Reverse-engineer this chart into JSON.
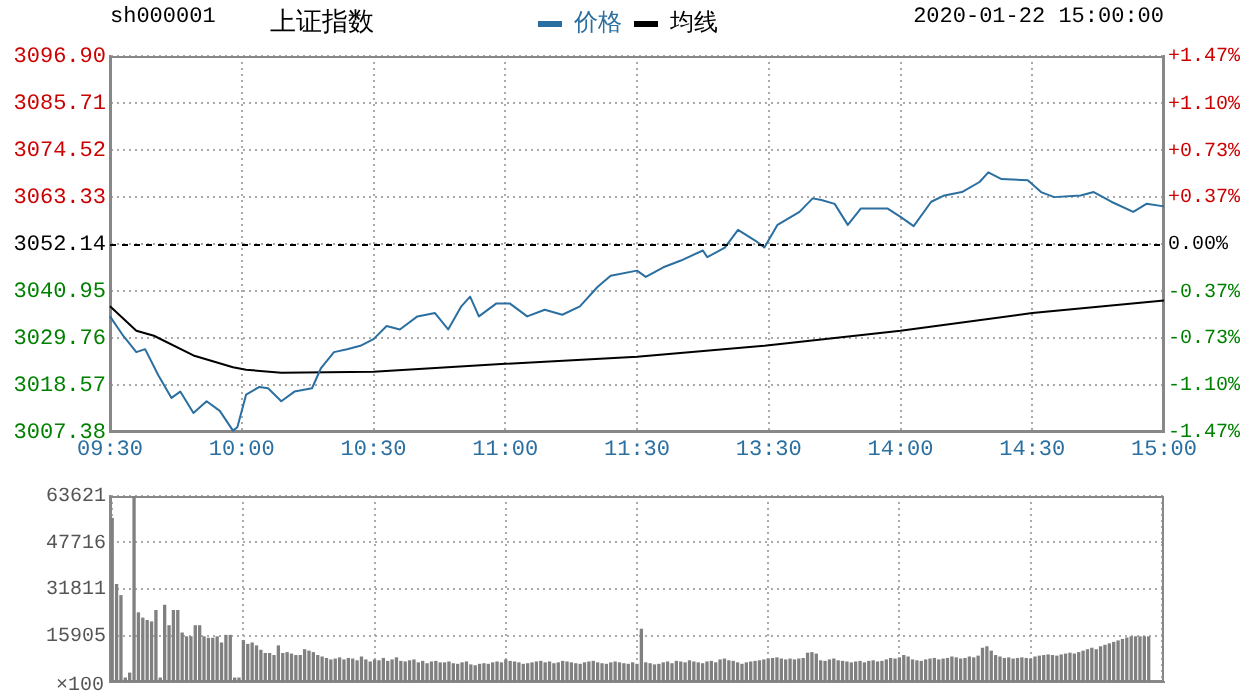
{
  "chart_data": [
    {
      "type": "line",
      "title": "上证指数",
      "subtitle": "sh000001",
      "annotations": [
        "2020-01-22 15:00:00"
      ],
      "categories": [
        "09:30",
        null,
        null,
        null,
        null,
        null,
        null,
        null,
        null,
        null,
        null,
        null,
        null,
        null,
        null,
        null,
        null,
        null,
        null,
        null,
        null,
        null,
        null,
        null,
        null,
        null,
        null,
        null,
        null,
        null,
        "10:00",
        null,
        null,
        null,
        null,
        null,
        null,
        null,
        null,
        null,
        null,
        null,
        null,
        null,
        null,
        null,
        null,
        null,
        null,
        null,
        null,
        null,
        null,
        null,
        null,
        null,
        null,
        null,
        null,
        null,
        "10:30",
        null,
        null,
        null,
        null,
        null,
        null,
        null,
        null,
        null,
        null,
        null,
        null,
        null,
        null,
        null,
        null,
        null,
        null,
        null,
        null,
        null,
        null,
        null,
        null,
        null,
        null,
        null,
        null,
        null,
        "11:00",
        null,
        null,
        null,
        null,
        null,
        null,
        null,
        null,
        null,
        null,
        null,
        null,
        null,
        null,
        null,
        null,
        null,
        null,
        null,
        null,
        null,
        null,
        null,
        null,
        null,
        null,
        null,
        null,
        null,
        "11:30",
        null,
        null,
        null,
        null,
        null,
        null,
        null,
        null,
        null,
        null,
        null,
        null,
        null,
        null,
        null,
        null,
        null,
        null,
        null,
        null,
        null,
        null,
        null,
        null,
        null,
        null,
        null,
        null,
        null,
        "13:30",
        null,
        null,
        null,
        null,
        null,
        null,
        null,
        null,
        null,
        null,
        null,
        null,
        null,
        null,
        null,
        null,
        null,
        null,
        null,
        null,
        null,
        null,
        null,
        null,
        null,
        null,
        null,
        null,
        null,
        "14:00",
        null,
        null,
        null,
        null,
        null,
        null,
        null,
        null,
        null,
        null,
        null,
        null,
        null,
        null,
        null,
        null,
        null,
        null,
        null,
        null,
        null,
        null,
        null,
        null,
        null,
        null,
        null,
        null,
        null,
        "14:30",
        null,
        null,
        null,
        null,
        null,
        null,
        null,
        null,
        null,
        null,
        null,
        null,
        null,
        null,
        null,
        null,
        null,
        null,
        null,
        null,
        null,
        null,
        null,
        null,
        null,
        null,
        null,
        null,
        null,
        "15:00"
      ],
      "ylim": [
        3007.38,
        3096.9
      ],
      "yticks": [
        {
          "value": 3007.38,
          "label": "3007.38"
        },
        {
          "value": 3018.57,
          "label": "3018.57"
        },
        {
          "value": 3029.76,
          "label": "3029.76"
        },
        {
          "value": 3040.95,
          "label": "3040.95"
        },
        {
          "value": 3052.14,
          "label": "3052.14"
        },
        {
          "value": 3063.33,
          "label": "3063.33"
        },
        {
          "value": 3074.52,
          "label": "3074.52"
        },
        {
          "value": 3085.71,
          "label": "3085.71"
        },
        {
          "value": 3096.9,
          "label": "3096.90"
        }
      ],
      "y2lim": [
        -1.47,
        1.47
      ],
      "y2ticks": [
        {
          "value": -1.47,
          "label": "-1.47%"
        },
        {
          "value": -1.1,
          "label": "-1.10%"
        },
        {
          "value": -0.73,
          "label": "-0.73%"
        },
        {
          "value": -0.37,
          "label": "-0.37%"
        },
        {
          "value": 0,
          "label": "0.00%"
        },
        {
          "value": 0.37,
          "label": "+0.37%"
        },
        {
          "value": 0.73,
          "label": "+0.73%"
        },
        {
          "value": 1.1,
          "label": "+1.10%"
        },
        {
          "value": 1.47,
          "label": "+1.47%"
        }
      ],
      "series": [
        {
          "name": "价格",
          "color": "#2a6fa0",
          "values": [
            3034.9,
            null,
            null,
            3030.3,
            null,
            null,
            3026.4,
            null,
            3027.1,
            null,
            null,
            3020.9,
            null,
            null,
            3015.5,
            null,
            3017,
            null,
            null,
            3011.9,
            null,
            null,
            3014.7,
            null,
            null,
            3012.4,
            null,
            null,
            3007.7,
            3008.5,
            null,
            3016.3,
            null,
            null,
            3018.1,
            null,
            3017.8,
            null,
            null,
            3014.7,
            null,
            null,
            3017,
            null,
            null,
            null,
            3017.8,
            null,
            3022.5,
            null,
            null,
            3026.4,
            null,
            null,
            3027.1,
            null,
            null,
            3027.9,
            null,
            null,
            3029.5,
            null,
            null,
            3032.6,
            null,
            null,
            3031.8,
            null,
            null,
            null,
            3034.9,
            null,
            null,
            null,
            3035.7,
            null,
            null,
            3031.8,
            null,
            null,
            3037.3,
            null,
            3039.6,
            null,
            3034.9,
            null,
            null,
            null,
            3038,
            null,
            null,
            3038,
            null,
            null,
            null,
            3034.9,
            null,
            null,
            null,
            3036.5,
            null,
            null,
            null,
            3035.3,
            null,
            null,
            null,
            3037.3,
            null,
            null,
            null,
            3041.9,
            null,
            null,
            3044.6,
            null,
            null,
            null,
            null,
            null,
            3045.8,
            null,
            3044.3,
            null,
            null,
            null,
            3046.6,
            null,
            null,
            null,
            3048.2,
            null,
            null,
            null,
            null,
            3050.6,
            3049,
            null,
            null,
            null,
            3051.3,
            null,
            null,
            3055.5,
            null,
            null,
            null,
            3052.9,
            null,
            3051.3,
            null,
            null,
            3056.7,
            null,
            null,
            null,
            null,
            3059.8,
            null,
            null,
            3063,
            null,
            3062.6,
            null,
            null,
            3061.7,
            null,
            null,
            3056.7,
            null,
            null,
            3060.6,
            null,
            null,
            null,
            null,
            null,
            3060.6,
            null,
            null,
            3058.6,
            null,
            null,
            3056.4,
            null,
            null,
            null,
            3062.2,
            null,
            null,
            3063.7,
            null,
            null,
            null,
            3064.5,
            null,
            null,
            null,
            3066.9,
            null,
            3069.2,
            null,
            null,
            3067.6,
            null,
            null,
            null,
            null,
            null,
            3067.3,
            null,
            null,
            3064.5,
            null,
            null,
            3063.3,
            null,
            null,
            null,
            null,
            null,
            3063.7,
            null,
            null,
            3064.5,
            null,
            null,
            null,
            3062.2,
            null,
            null,
            null,
            null,
            3059.8,
            null,
            null,
            3061.7,
            null,
            null,
            null,
            3061.1
          ]
        },
        {
          "name": "均线",
          "color": "#000000",
          "values": [
            3037.3,
            null,
            null,
            null,
            null,
            null,
            3031.5,
            null,
            null,
            null,
            3030.3,
            null,
            null,
            null,
            null,
            null,
            null,
            null,
            null,
            3025.6,
            null,
            null,
            null,
            null,
            null,
            null,
            null,
            null,
            3022.8,
            null,
            null,
            3022.2,
            null,
            null,
            null,
            null,
            null,
            null,
            null,
            3021.5,
            null,
            null,
            null,
            null,
            null,
            null,
            null,
            null,
            null,
            null,
            null,
            null,
            null,
            null,
            null,
            null,
            null,
            null,
            null,
            null,
            3021.7,
            null,
            null,
            null,
            null,
            null,
            null,
            null,
            null,
            null,
            null,
            null,
            null,
            null,
            null,
            null,
            null,
            null,
            null,
            null,
            null,
            null,
            null,
            null,
            null,
            null,
            null,
            null,
            null,
            null,
            3023.6,
            null,
            null,
            null,
            null,
            null,
            null,
            null,
            null,
            null,
            null,
            null,
            null,
            null,
            null,
            null,
            null,
            null,
            null,
            null,
            null,
            null,
            null,
            null,
            null,
            null,
            null,
            null,
            null,
            null,
            3025.3,
            null,
            null,
            null,
            null,
            null,
            null,
            null,
            null,
            null,
            null,
            null,
            null,
            null,
            null,
            null,
            null,
            null,
            null,
            null,
            null,
            null,
            null,
            null,
            null,
            null,
            null,
            null,
            null,
            3027.9,
            null,
            null,
            null,
            null,
            null,
            null,
            null,
            null,
            null,
            null,
            null,
            null,
            null,
            null,
            null,
            null,
            null,
            null,
            null,
            null,
            null,
            null,
            null,
            null,
            null,
            null,
            null,
            null,
            null,
            null,
            3031.5,
            null,
            null,
            null,
            null,
            null,
            null,
            null,
            null,
            null,
            null,
            null,
            null,
            null,
            null,
            null,
            null,
            null,
            null,
            null,
            null,
            null,
            null,
            null,
            null,
            null,
            null,
            null,
            null,
            null,
            3035.7,
            null,
            null,
            null,
            null,
            null,
            null,
            null,
            null,
            null,
            null,
            null,
            null,
            null,
            null,
            null,
            null,
            null,
            null,
            null,
            null,
            null,
            null,
            null,
            null,
            null,
            null,
            null,
            null,
            null,
            3038.7
          ]
        }
      ],
      "ref_lines": [
        {
          "axis": "y",
          "value": 3052.14,
          "color": "#000000",
          "line_style": "dashed"
        }
      ],
      "grid": true,
      "legend": "top"
    },
    {
      "type": "bar",
      "color": "#808080",
      "ylabel": "×100",
      "categories": [
        null,
        null,
        null,
        null,
        null,
        null,
        null,
        null,
        null,
        null,
        null,
        null,
        null,
        null,
        null,
        null,
        null,
        null,
        null,
        null,
        null,
        null,
        null,
        null,
        null,
        null,
        null,
        null,
        null,
        null,
        null,
        null,
        null,
        null,
        null,
        null,
        null,
        null,
        null,
        null,
        null,
        null,
        null,
        null,
        null,
        null,
        null,
        null,
        null,
        null,
        null,
        null,
        null,
        null,
        null,
        null,
        null,
        null,
        null,
        null,
        null,
        null,
        null,
        null,
        null,
        null,
        null,
        null,
        null,
        null,
        null,
        null,
        null,
        null,
        null,
        null,
        null,
        null,
        null,
        null,
        null,
        null,
        null,
        null,
        null,
        null,
        null,
        null,
        null,
        null,
        null,
        null,
        null,
        null,
        null,
        null,
        null,
        null,
        null,
        null,
        null,
        null,
        null,
        null,
        null,
        null,
        null,
        null,
        null,
        null,
        null,
        null,
        null,
        null,
        null,
        null,
        null,
        null,
        null,
        null,
        null,
        null,
        null,
        null,
        null,
        null,
        null,
        null,
        null,
        null,
        null,
        null,
        null,
        null,
        null,
        null,
        null,
        null,
        null,
        null,
        null,
        null,
        null,
        null,
        null,
        null,
        null,
        null,
        null,
        null,
        null,
        null,
        null,
        null,
        null,
        null,
        null,
        null,
        null,
        null,
        null,
        null,
        null,
        null,
        null,
        null,
        null,
        null,
        null,
        null,
        null,
        null,
        null,
        null,
        null,
        null,
        null,
        null,
        null,
        null,
        null,
        null,
        null,
        null,
        null,
        null,
        null,
        null,
        null,
        null,
        null,
        null,
        null,
        null,
        null,
        null,
        null,
        null,
        null,
        null,
        null,
        null,
        null,
        null,
        null,
        null,
        null,
        null,
        null,
        null,
        null,
        null,
        null,
        null,
        null,
        null,
        null,
        null,
        null,
        null,
        null,
        null,
        null,
        null,
        null,
        null,
        null,
        null,
        null,
        null,
        null,
        null,
        null,
        null,
        null,
        null,
        null,
        null,
        null,
        null,
        null
      ],
      "values": [
        55900,
        33300,
        29500,
        1300,
        3000,
        63600,
        23600,
        21800,
        21000,
        20500,
        24400,
        1300,
        26200,
        19200,
        24400,
        24400,
        16700,
        15400,
        15400,
        19200,
        19200,
        15400,
        14900,
        14900,
        15400,
        13300,
        15900,
        15900,
        1300,
        1300,
        14100,
        12800,
        13300,
        12300,
        10800,
        9700,
        9700,
        9000,
        12300,
        9700,
        10000,
        9500,
        9000,
        9000,
        11000,
        10500,
        10000,
        9000,
        8500,
        8000,
        7500,
        7800,
        8200,
        7500,
        8000,
        7800,
        7200,
        8500,
        7500,
        6800,
        7500,
        7200,
        8000,
        7000,
        7500,
        8200,
        7000,
        6800,
        7200,
        7500,
        6500,
        7000,
        6200,
        6800,
        7000,
        6500,
        6500,
        6800,
        6200,
        6000,
        6500,
        6800,
        5800,
        5500,
        6000,
        6200,
        6000,
        6500,
        6800,
        6500,
        7500,
        7000,
        6800,
        6500,
        6000,
        6200,
        6500,
        6800,
        7000,
        6500,
        6800,
        6200,
        6500,
        7000,
        6800,
        6500,
        6200,
        6000,
        6500,
        6800,
        7000,
        6500,
        6200,
        6000,
        6500,
        6800,
        6500,
        6200,
        6000,
        6500,
        6000,
        18000,
        6500,
        6200,
        5800,
        6000,
        6500,
        6800,
        6200,
        7000,
        6800,
        6500,
        7200,
        6800,
        6500,
        6200,
        6800,
        7000,
        6500,
        7500,
        7800,
        7200,
        7000,
        6500,
        6000,
        6500,
        6800,
        7000,
        7200,
        7500,
        7800,
        8000,
        8200,
        7800,
        7500,
        7800,
        7500,
        7800,
        8000,
        9800,
        10000,
        9500,
        7200,
        7000,
        7500,
        7800,
        7200,
        7000,
        6800,
        6500,
        6800,
        7000,
        6500,
        7000,
        7200,
        6800,
        7000,
        7500,
        8000,
        7800,
        8200,
        9000,
        8500,
        7500,
        7200,
        7000,
        7500,
        7800,
        8000,
        7500,
        7800,
        8000,
        8500,
        8200,
        7800,
        8000,
        8500,
        8200,
        8800,
        11500,
        12000,
        10500,
        9000,
        8500,
        8000,
        8200,
        7800,
        8000,
        8200,
        8000,
        7800,
        8500,
        8800,
        9000,
        9200,
        9000,
        8800,
        9200,
        9500,
        9800,
        9500,
        10000,
        10500,
        11000,
        11500,
        11000,
        12000,
        12500,
        13000,
        13500,
        14000,
        14500,
        15000,
        15400,
        15400,
        15400,
        15400,
        15400,
        null,
        null,
        null
      ],
      "ylim": [
        0,
        63621
      ],
      "yticks": [
        {
          "value": 0,
          "label": null
        },
        {
          "value": 15905,
          "label": "15905"
        },
        {
          "value": 31811,
          "label": "31811"
        },
        {
          "value": 47716,
          "label": "47716"
        },
        {
          "value": 63621,
          "label": "63621"
        }
      ],
      "grid": true,
      "tick_labels": "y"
    }
  ]
}
